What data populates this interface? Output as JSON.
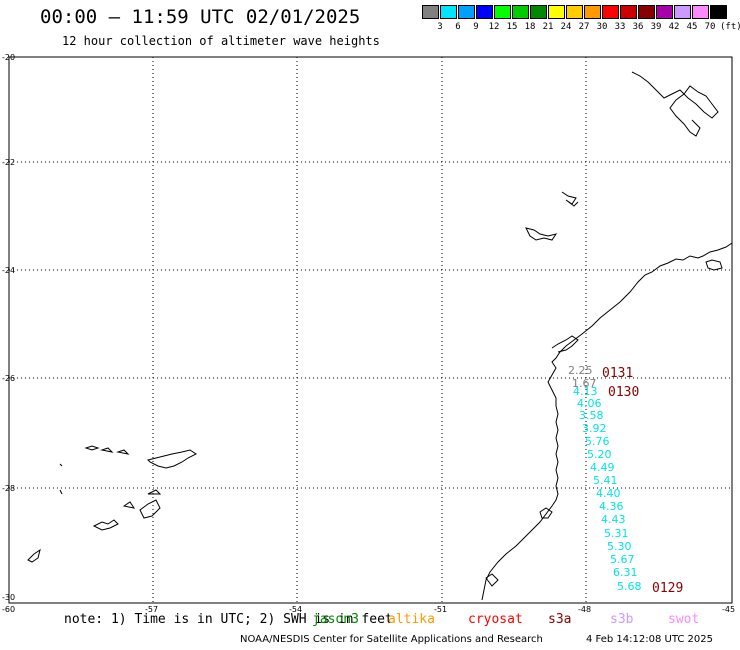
{
  "title": "00:00 – 11:59 UTC 02/01/2025",
  "subtitle": "12 hour collection of altimeter wave heights",
  "colorbar": {
    "colors": [
      "#808080",
      "#00e5ff",
      "#00a0ff",
      "#0000ff",
      "#00ff00",
      "#00cc00",
      "#008800",
      "#ffff00",
      "#ffcc00",
      "#ff9900",
      "#ff0000",
      "#cc0000",
      "#880000",
      "#aa00aa",
      "#cc99ff",
      "#ff88ff",
      "#000000"
    ],
    "ticks": [
      "3",
      "6",
      "9",
      "12",
      "15",
      "18",
      "21",
      "24",
      "27",
      "30",
      "33",
      "36",
      "39",
      "42",
      "45",
      "70"
    ],
    "unit": "(ft)"
  },
  "axes": {
    "lat_labels": [
      "-20",
      "-22",
      "-24",
      "-26",
      "-28",
      "-30"
    ],
    "lon_labels": [
      "-60",
      "-57",
      "-54",
      "-51",
      "-48",
      "-45"
    ]
  },
  "passes": [
    {
      "label": "0131",
      "color": "#880000"
    },
    {
      "label": "0130",
      "color": "#880000"
    },
    {
      "label": "0129",
      "color": "#880000"
    }
  ],
  "wave_heights": [
    {
      "value": "2.25",
      "color": "#808080"
    },
    {
      "value": "1.67",
      "color": "#808080"
    },
    {
      "value": "4.13",
      "color": "#00e5e5"
    },
    {
      "value": "4.06",
      "color": "#00e5e5"
    },
    {
      "value": "3.58",
      "color": "#00e5e5"
    },
    {
      "value": "3.92",
      "color": "#00e5e5"
    },
    {
      "value": "5.76",
      "color": "#00e5e5"
    },
    {
      "value": "5.20",
      "color": "#00e5e5"
    },
    {
      "value": "4.49",
      "color": "#00e5e5"
    },
    {
      "value": "5.41",
      "color": "#00e5e5"
    },
    {
      "value": "4.40",
      "color": "#00e5e5"
    },
    {
      "value": "4.36",
      "color": "#00e5e5"
    },
    {
      "value": "4.43",
      "color": "#00e5e5"
    },
    {
      "value": "5.31",
      "color": "#00e5e5"
    },
    {
      "value": "5.30",
      "color": "#00e5e5"
    },
    {
      "value": "5.67",
      "color": "#00e5e5"
    },
    {
      "value": "6.31",
      "color": "#00e5e5"
    },
    {
      "value": "5.68",
      "color": "#00e5e5"
    }
  ],
  "footer": {
    "note": "note: 1) Time is in UTC; 2) SWH is in feet",
    "satellites": [
      {
        "name": "jason3",
        "color": "#008800"
      },
      {
        "name": "altika",
        "color": "#ff9900"
      },
      {
        "name": "cryosat",
        "color": "#ff0000"
      },
      {
        "name": "s3a",
        "color": "#880000"
      },
      {
        "name": "s3b",
        "color": "#cc99ff"
      },
      {
        "name": "swot",
        "color": "#ff88ff"
      }
    ],
    "credit": "NOAA/NESDIS Center for Satellite Applications and Research",
    "generated": "4 Feb 14:12:08 UTC 2025"
  }
}
